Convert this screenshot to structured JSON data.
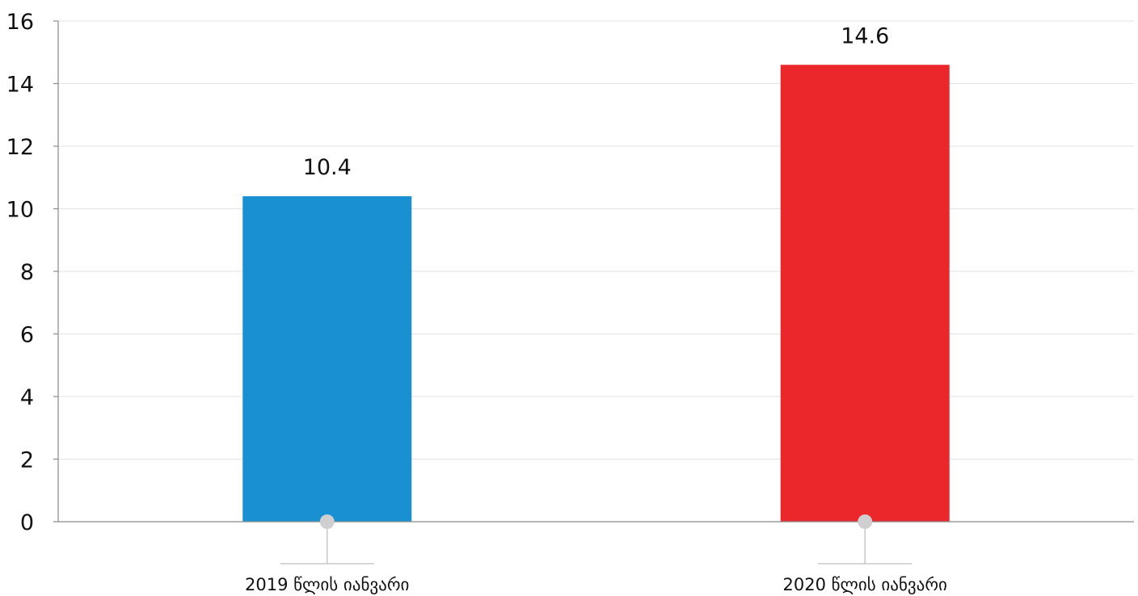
{
  "chart_data": {
    "type": "bar",
    "categories": [
      "2019 წლის იანვარი",
      "2020 წლის იანვარი"
    ],
    "values": [
      10.4,
      14.6
    ],
    "colors": [
      "#1990d1",
      "#eb272b"
    ],
    "data_labels": [
      "10.4",
      "14.6"
    ],
    "title": "",
    "xlabel": "",
    "ylabel": "",
    "ylim": [
      0,
      16
    ],
    "yticks": [
      0,
      2,
      4,
      6,
      8,
      10,
      12,
      14,
      16
    ],
    "grid": true,
    "legend": "none"
  }
}
